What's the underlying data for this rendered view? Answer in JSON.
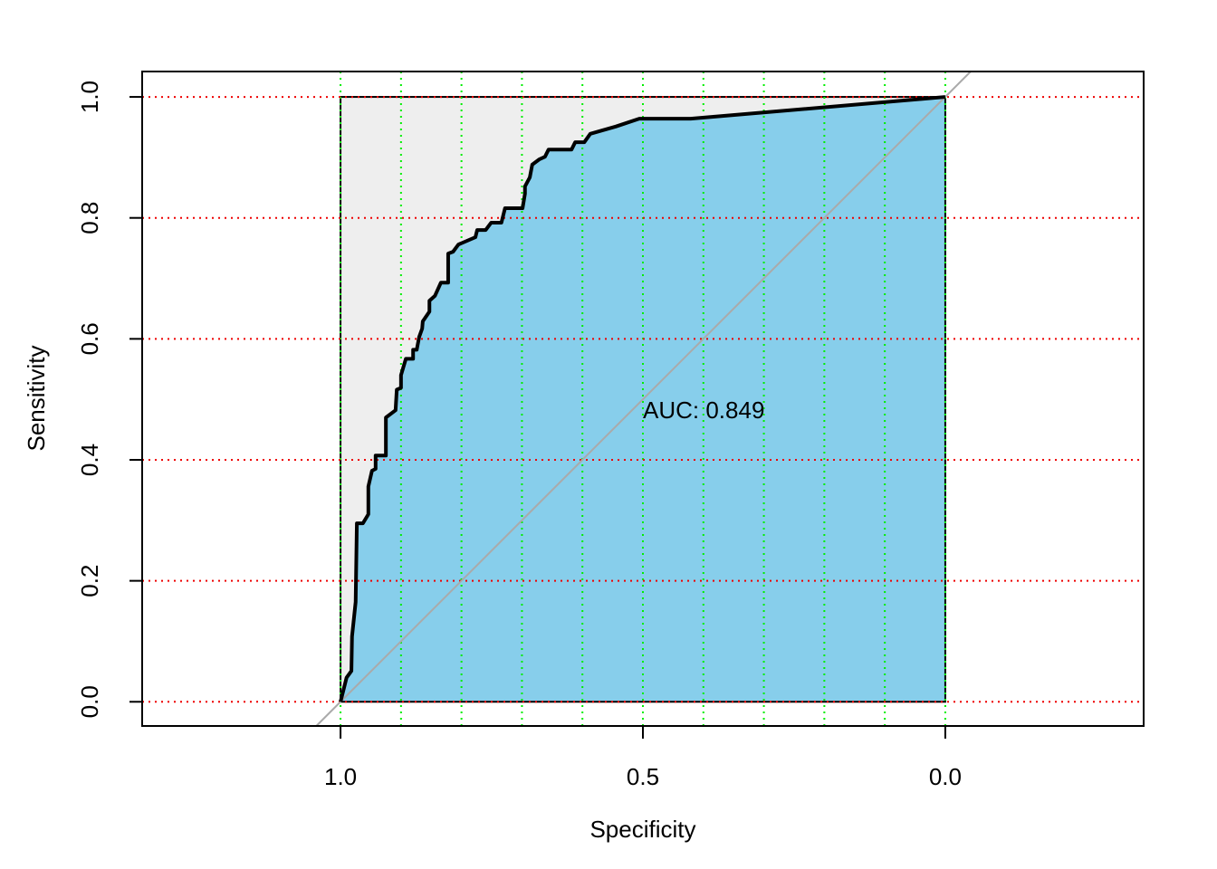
{
  "chart_data": {
    "type": "roc",
    "xlabel": "Specificity",
    "ylabel": "Sensitivity",
    "annotation": "AUC: 0.849",
    "xlim": [
      1.328,
      -0.328
    ],
    "ylim": [
      -0.04,
      1.042
    ],
    "xticks": [
      {
        "value": 1.0,
        "label": "1.0"
      },
      {
        "value": 0.5,
        "label": "0.5"
      },
      {
        "value": 0.0,
        "label": "0.0"
      }
    ],
    "yticks": [
      {
        "value": 0.0,
        "label": "0.0"
      },
      {
        "value": 0.2,
        "label": "0.2"
      },
      {
        "value": 0.4,
        "label": "0.4"
      },
      {
        "value": 0.6,
        "label": "0.6"
      },
      {
        "value": 0.8,
        "label": "0.8"
      },
      {
        "value": 1.0,
        "label": "1.0"
      }
    ],
    "grid_x": [
      1.0,
      0.9,
      0.8,
      0.7,
      0.6,
      0.5,
      0.4,
      0.3,
      0.2,
      0.1,
      0.0
    ],
    "grid_x_color": "#00ee00",
    "grid_y": [
      0.0,
      0.2,
      0.4,
      0.6,
      0.8,
      1.0
    ],
    "grid_y_color": "#ee0000",
    "fill_color": "#87ceeb",
    "background_color": "#eeeeee",
    "line_color": "#000000",
    "diagonal_color": "#aaaaaa",
    "x": [
      1.0,
      0.99,
      0.982,
      0.981,
      0.975,
      0.973,
      0.963,
      0.954,
      0.954,
      0.948,
      0.942,
      0.942,
      0.925,
      0.925,
      0.909,
      0.907,
      0.9,
      0.9,
      0.892,
      0.88,
      0.88,
      0.874,
      0.87,
      0.865,
      0.864,
      0.853,
      0.853,
      0.844,
      0.834,
      0.822,
      0.822,
      0.814,
      0.805,
      0.777,
      0.774,
      0.76,
      0.751,
      0.734,
      0.728,
      0.699,
      0.695,
      0.695,
      0.687,
      0.683,
      0.671,
      0.662,
      0.656,
      0.618,
      0.612,
      0.597,
      0.587,
      0.545,
      0.506,
      0.421,
      0.0
    ],
    "values": [
      0.0,
      0.04,
      0.051,
      0.108,
      0.165,
      0.295,
      0.295,
      0.31,
      0.356,
      0.382,
      0.385,
      0.407,
      0.407,
      0.47,
      0.482,
      0.516,
      0.519,
      0.54,
      0.567,
      0.567,
      0.582,
      0.582,
      0.603,
      0.617,
      0.629,
      0.645,
      0.663,
      0.671,
      0.693,
      0.693,
      0.741,
      0.744,
      0.756,
      0.768,
      0.78,
      0.78,
      0.792,
      0.792,
      0.816,
      0.816,
      0.84,
      0.852,
      0.867,
      0.888,
      0.897,
      0.901,
      0.913,
      0.913,
      0.925,
      0.925,
      0.939,
      0.951,
      0.964,
      0.964,
      1.0
    ]
  }
}
